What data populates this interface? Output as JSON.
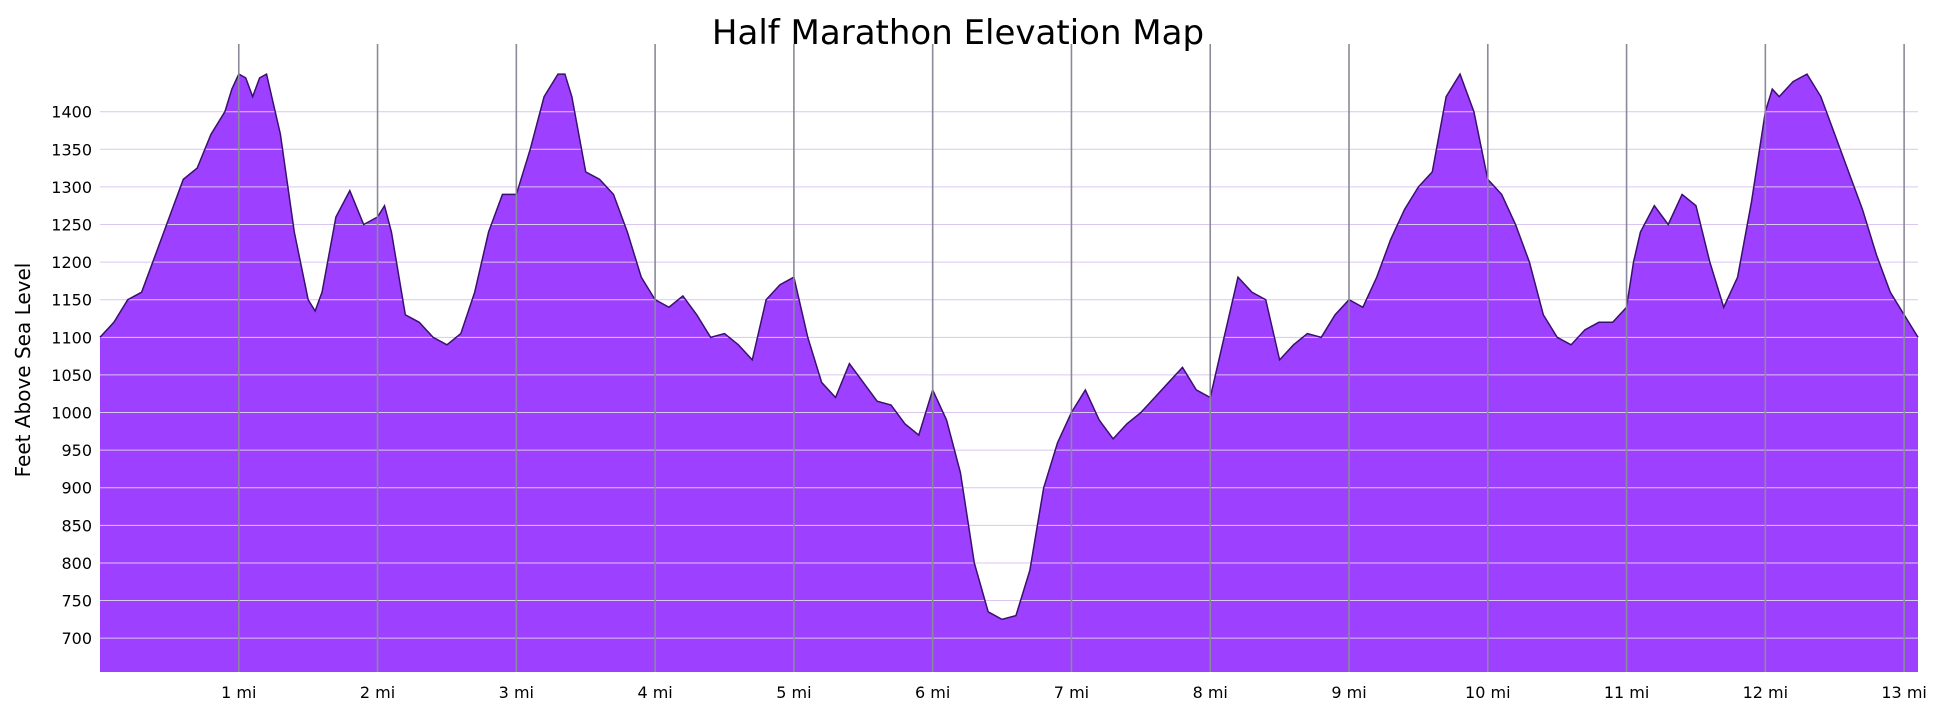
{
  "chart_data": {
    "type": "area",
    "title": "Half Marathon Elevation Map",
    "xlabel": "",
    "ylabel": "Feet Above Sea Level",
    "xlim": [
      0,
      13.1
    ],
    "ylim": [
      655,
      1490
    ],
    "y_ticks": [
      700,
      750,
      800,
      850,
      900,
      950,
      1000,
      1050,
      1100,
      1150,
      1200,
      1250,
      1300,
      1350,
      1400
    ],
    "x_ticks": [
      {
        "value": 1,
        "label": "1 mi"
      },
      {
        "value": 2,
        "label": "2 mi"
      },
      {
        "value": 3,
        "label": "3 mi"
      },
      {
        "value": 4,
        "label": "4 mi"
      },
      {
        "value": 5,
        "label": "5 mi"
      },
      {
        "value": 6,
        "label": "6 mi"
      },
      {
        "value": 7,
        "label": "7 mi"
      },
      {
        "value": 8,
        "label": "8 mi"
      },
      {
        "value": 9,
        "label": "9 mi"
      },
      {
        "value": 10,
        "label": "10 mi"
      },
      {
        "value": 11,
        "label": "11 mi"
      },
      {
        "value": 12,
        "label": "12 mi"
      },
      {
        "value": 13,
        "label": "13 mi"
      }
    ],
    "grid": true,
    "fill_color": "#9e40ff",
    "line_color": "#3a1070",
    "gridline_color": "#d9c7f0",
    "mile_marker_color": "#8a8a9a",
    "series": [
      {
        "x": [
          0,
          0.1,
          0.2,
          0.3,
          0.4,
          0.5,
          0.6,
          0.7,
          0.8,
          0.9,
          0.95,
          1.0,
          1.05,
          1.1,
          1.15,
          1.2,
          1.3,
          1.4,
          1.5,
          1.55,
          1.6,
          1.7,
          1.8,
          1.9,
          2.0,
          2.05,
          2.1,
          2.2,
          2.3,
          2.4,
          2.5,
          2.6,
          2.7,
          2.8,
          2.9,
          3.0,
          3.1,
          3.2,
          3.3,
          3.35,
          3.4,
          3.5,
          3.6,
          3.7,
          3.8,
          3.9,
          4.0,
          4.1,
          4.2,
          4.3,
          4.4,
          4.5,
          4.6,
          4.7,
          4.8,
          4.9,
          5.0,
          5.1,
          5.2,
          5.3,
          5.4,
          5.5,
          5.6,
          5.7,
          5.8,
          5.9,
          6.0,
          6.1,
          6.2,
          6.3,
          6.4,
          6.5,
          6.6,
          6.7,
          6.8,
          6.9,
          7.0,
          7.1,
          7.2,
          7.3,
          7.4,
          7.5,
          7.6,
          7.7,
          7.8,
          7.9,
          8.0,
          8.1,
          8.2,
          8.3,
          8.4,
          8.5,
          8.6,
          8.7,
          8.8,
          8.9,
          9.0,
          9.1,
          9.2,
          9.3,
          9.4,
          9.5,
          9.6,
          9.7,
          9.8,
          9.9,
          10.0,
          10.1,
          10.2,
          10.3,
          10.4,
          10.5,
          10.6,
          10.7,
          10.8,
          10.9,
          11.0,
          11.05,
          11.1,
          11.2,
          11.3,
          11.4,
          11.5,
          11.6,
          11.7,
          11.8,
          11.9,
          12.0,
          12.05,
          12.1,
          12.2,
          12.3,
          12.4,
          12.5,
          12.6,
          12.7,
          12.8,
          12.9,
          13.0,
          13.1
        ],
        "y": [
          1100,
          1120,
          1150,
          1160,
          1210,
          1260,
          1310,
          1325,
          1370,
          1400,
          1430,
          1450,
          1445,
          1420,
          1445,
          1450,
          1370,
          1240,
          1150,
          1135,
          1160,
          1260,
          1295,
          1250,
          1260,
          1275,
          1240,
          1130,
          1120,
          1100,
          1090,
          1105,
          1160,
          1240,
          1290,
          1290,
          1350,
          1420,
          1450,
          1450,
          1420,
          1320,
          1310,
          1290,
          1240,
          1180,
          1150,
          1140,
          1155,
          1130,
          1100,
          1105,
          1090,
          1070,
          1150,
          1170,
          1180,
          1100,
          1040,
          1020,
          1065,
          1040,
          1015,
          1010,
          985,
          970,
          1030,
          990,
          920,
          800,
          735,
          725,
          730,
          790,
          900,
          960,
          1000,
          1030,
          990,
          965,
          985,
          1000,
          1020,
          1040,
          1060,
          1030,
          1020,
          1100,
          1180,
          1160,
          1150,
          1070,
          1090,
          1105,
          1100,
          1130,
          1150,
          1140,
          1180,
          1230,
          1270,
          1300,
          1320,
          1420,
          1450,
          1400,
          1310,
          1290,
          1250,
          1200,
          1130,
          1100,
          1090,
          1110,
          1120,
          1120,
          1140,
          1200,
          1240,
          1275,
          1250,
          1290,
          1275,
          1200,
          1140,
          1180,
          1280,
          1400,
          1430,
          1420,
          1440,
          1450,
          1420,
          1370,
          1320,
          1270,
          1210,
          1160,
          1130,
          1100
        ]
      }
    ]
  }
}
